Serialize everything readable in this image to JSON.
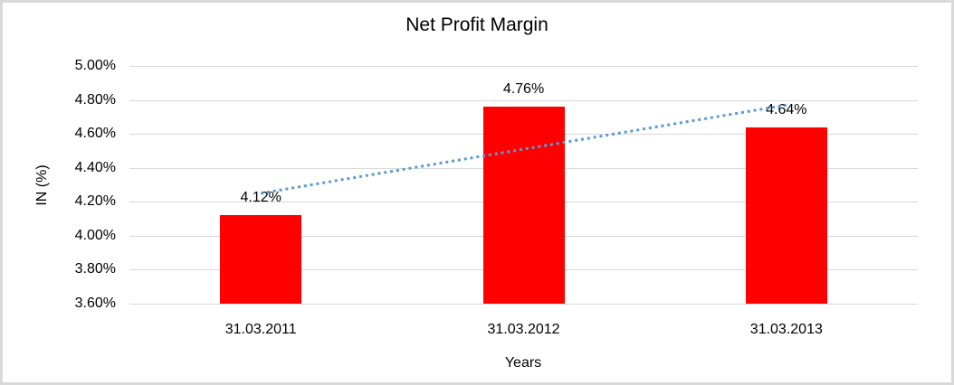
{
  "frame": {
    "background": "#ffffff",
    "border_color": "#d9d9d9",
    "text_color": "#000000"
  },
  "chart_data": {
    "type": "bar",
    "title": "Net Profit Margin",
    "xlabel": "Years",
    "ylabel": "IN (%)",
    "categories": [
      "31.03.2011",
      "31.03.2012",
      "31.03.2013"
    ],
    "series": [
      {
        "name": "Net Profit Margin",
        "values": [
          4.12,
          4.76,
          4.64
        ],
        "color": "#ff0000"
      }
    ],
    "data_labels": [
      "4.12%",
      "4.76%",
      "4.64%"
    ],
    "ylim": [
      3.6,
      5.0
    ],
    "ytick_step": 0.2,
    "ytick_labels": [
      "5.00%",
      "4.80%",
      "4.60%",
      "4.40%",
      "4.20%",
      "4.00%",
      "3.80%",
      "3.60%"
    ],
    "ytick_values": [
      5.0,
      4.8,
      4.6,
      4.4,
      4.2,
      4.0,
      3.8,
      3.6
    ],
    "grid": true,
    "gridline_color": "#d9d9d9",
    "legend": "none",
    "trendline": {
      "type": "linear",
      "style": "dotted",
      "color": "#5b9bd5",
      "start_value": 4.25,
      "end_value": 4.77
    }
  }
}
